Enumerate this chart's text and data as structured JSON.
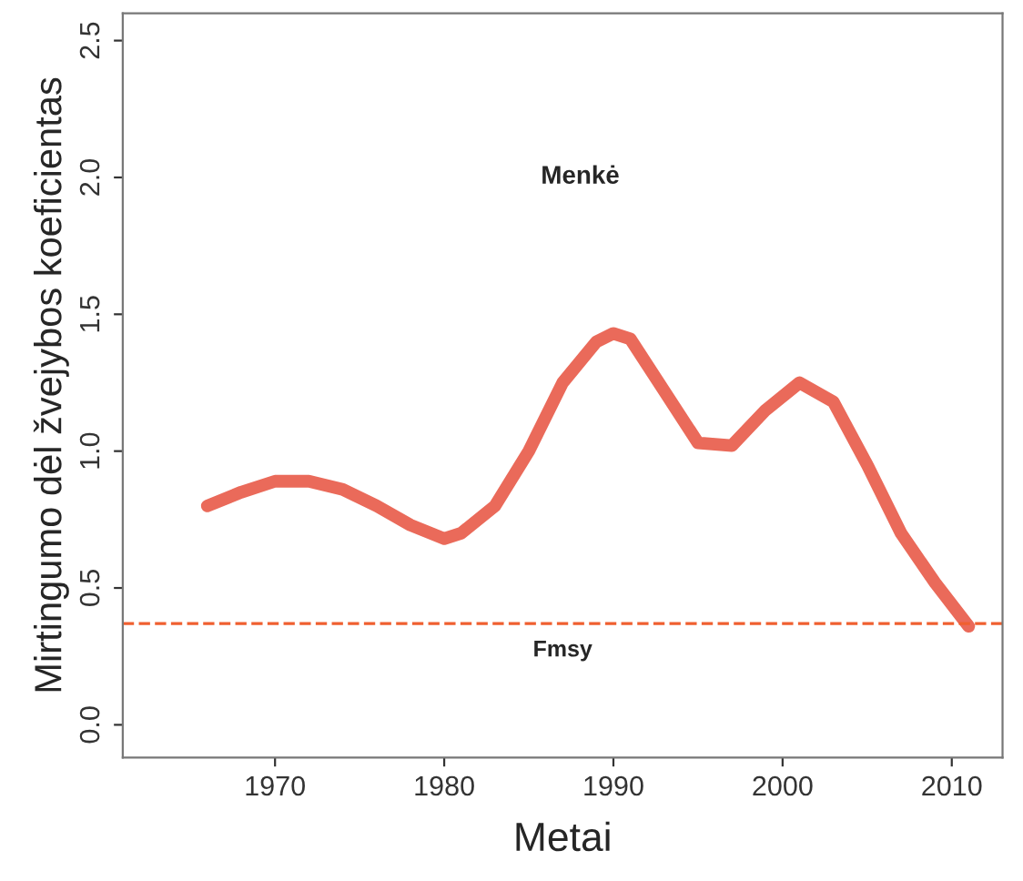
{
  "chart_data": {
    "type": "line",
    "xlabel": "Metai",
    "ylabel": "Mirtingumo dėl žvejybos koeficientas",
    "annotations": [
      "Menkė"
    ],
    "x": [
      1966,
      1968,
      1970,
      1972,
      1974,
      1976,
      1978,
      1980,
      1981,
      1983,
      1985,
      1987,
      1989,
      1990,
      1991,
      1993,
      1995,
      1997,
      1999,
      2001,
      2003,
      2005,
      2007,
      2009,
      2011
    ],
    "series": [
      {
        "color": "#ea6a5a",
        "values": [
          0.8,
          0.85,
          0.89,
          0.89,
          0.86,
          0.8,
          0.73,
          0.68,
          0.7,
          0.8,
          1.0,
          1.25,
          1.4,
          1.43,
          1.41,
          1.22,
          1.03,
          1.02,
          1.15,
          1.25,
          1.18,
          0.95,
          0.7,
          0.52,
          0.36
        ]
      }
    ],
    "xlim": [
      1961,
      2013
    ],
    "ylim": [
      -0.12,
      2.6
    ],
    "xticks": [
      1970,
      1980,
      1990,
      2000,
      2010
    ],
    "yticks": [
      {
        "value": 0,
        "label": "0.0"
      },
      0.5,
      {
        "value": 1,
        "label": "1.0"
      },
      1.5,
      {
        "value": 2,
        "label": "2.0"
      },
      2.5
    ],
    "ref_lines": [
      {
        "axis": "y",
        "value": 0.37,
        "label": "Fmsy",
        "color": "#f06030",
        "line_style": "dashed"
      }
    ],
    "grid": false,
    "marker": "none",
    "line_style": "solid"
  }
}
